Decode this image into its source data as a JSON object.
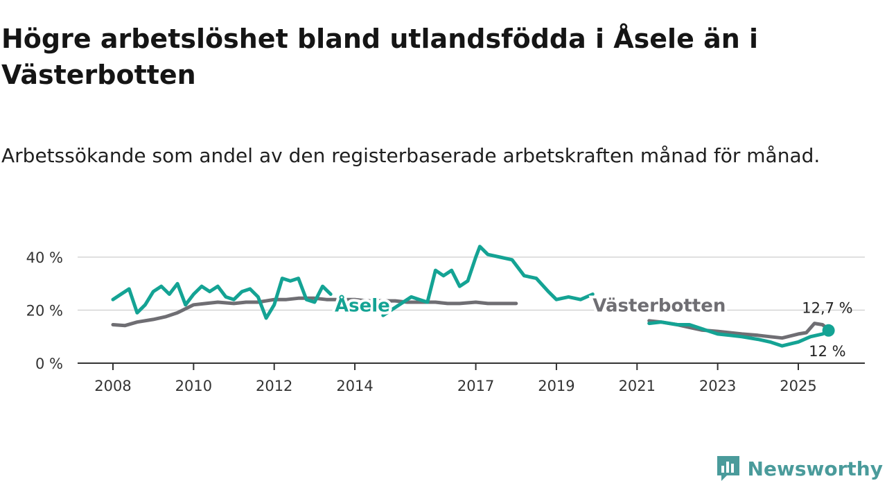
{
  "header": {
    "title": "Högre arbetslöshet bland utlandsfödda i Åsele än i Västerbotten",
    "subtitle": "Arbetssökande som andel av den registerbaserade arbetskraften månad för månad."
  },
  "brand": {
    "name": "Newsworthy",
    "icon": "newsworthy-logo-icon",
    "color": "#4a9b9b"
  },
  "chart_data": {
    "type": "line",
    "title": "Högre arbetslöshet bland utlandsfödda i Åsele än i Västerbotten",
    "subtitle": "Arbetssökande som andel av den registerbaserade arbetskraften månad för månad.",
    "xlabel": "",
    "ylabel": "",
    "xlim": [
      2007.8,
      2026.7
    ],
    "ylim": [
      0,
      45
    ],
    "grid": true,
    "y_ticks": [
      0,
      20,
      40
    ],
    "y_tick_labels": [
      "0 %",
      "20 %",
      "40 %"
    ],
    "x_ticks": [
      2008,
      2010,
      2012,
      2014,
      2017,
      2019,
      2021,
      2023,
      2025
    ],
    "x_tick_labels": [
      "2008",
      "2010",
      "2012",
      "2014",
      "2017",
      "2019",
      "2021",
      "2023",
      "2025"
    ],
    "series": [
      {
        "name": "Västerbotten",
        "color": "#6f6e73",
        "label_at": [
          2019.9,
          19.5
        ],
        "x": [
          2008.0,
          2008.3,
          2008.6,
          2009.0,
          2009.3,
          2009.6,
          2010.0,
          2010.3,
          2010.6,
          2011.0,
          2011.3,
          2011.6,
          2012.0,
          2012.3,
          2012.6,
          2013.0,
          2013.3,
          2013.6,
          2014.0,
          2014.3,
          2014.6,
          2015.0,
          2015.3,
          2015.6,
          2016.0,
          2016.3,
          2016.6,
          2017.0,
          2017.3,
          2017.6,
          2018.0
        ],
        "values": [
          14.5,
          14.2,
          15.5,
          16.5,
          17.5,
          19.0,
          22.0,
          22.5,
          23.0,
          22.5,
          23.0,
          23.0,
          24.0,
          24.0,
          24.5,
          24.5,
          24.0,
          24.0,
          24.0,
          23.5,
          23.5,
          23.5,
          23.0,
          23.0,
          23.0,
          22.5,
          22.5,
          23.0,
          22.5,
          22.5,
          22.5
        ],
        "x2": [
          2021.3,
          2021.6,
          2022.0,
          2022.3,
          2022.6,
          2023.0,
          2023.3,
          2023.6,
          2024.0,
          2024.3,
          2024.6,
          2025.0,
          2025.2,
          2025.4,
          2025.6,
          2025.75
        ],
        "values2": [
          16.0,
          15.5,
          14.5,
          13.5,
          12.5,
          12.0,
          11.5,
          11.0,
          10.5,
          10.0,
          9.5,
          11.0,
          11.5,
          15.0,
          14.5,
          12.7
        ],
        "end_label": "12,7 %"
      },
      {
        "name": "Åsele",
        "color": "#14a394",
        "label_at": [
          2013.5,
          19.5
        ],
        "x": [
          2008.0,
          2008.2,
          2008.4,
          2008.6,
          2008.8,
          2009.0,
          2009.2,
          2009.4,
          2009.6,
          2009.8,
          2010.0,
          2010.2,
          2010.4,
          2010.6,
          2010.8,
          2011.0,
          2011.2,
          2011.4,
          2011.6,
          2011.8,
          2012.0,
          2012.2,
          2012.4,
          2012.6,
          2012.8,
          2013.0,
          2013.2,
          2013.4
        ],
        "values": [
          24,
          26,
          28,
          19,
          22,
          27,
          29,
          26,
          30,
          22,
          26,
          29,
          27,
          29,
          25,
          24,
          27,
          28,
          25,
          17,
          22,
          32,
          31,
          32,
          24,
          23,
          29,
          26
        ],
        "x2": [
          2014.7,
          2015.0,
          2015.2,
          2015.4,
          2015.6,
          2015.8,
          2016.0,
          2016.2,
          2016.4,
          2016.6,
          2016.8,
          2017.0,
          2017.1,
          2017.3,
          2017.6,
          2017.9,
          2018.2,
          2018.5,
          2018.8,
          2019.0,
          2019.3,
          2019.6,
          2019.9
        ],
        "values2": [
          18,
          21,
          23,
          25,
          24,
          23,
          35,
          33,
          35,
          29,
          31,
          40,
          44,
          41,
          40,
          39,
          33,
          32,
          27,
          24,
          25,
          24,
          26
        ],
        "x3": [
          2021.3,
          2021.6,
          2022.0,
          2022.3,
          2022.6,
          2023.0,
          2023.3,
          2023.6,
          2024.0,
          2024.3,
          2024.6,
          2025.0,
          2025.3,
          2025.6,
          2025.75
        ],
        "values3": [
          15.0,
          15.5,
          14.5,
          14.5,
          13.0,
          11.0,
          10.5,
          10.0,
          9.0,
          8.0,
          6.5,
          8.0,
          10.0,
          11.0,
          12.0
        ],
        "end_label": "12 %"
      }
    ]
  }
}
